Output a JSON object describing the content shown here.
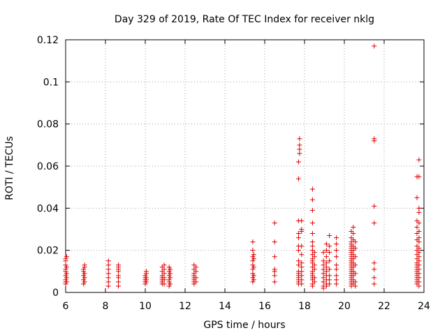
{
  "chart_data": {
    "type": "scatter",
    "title": "Day 329 of 2019, Rate Of TEC Index for receiver nklg",
    "xlabel": "GPS time / hours",
    "ylabel": "ROTI / TECUs",
    "xlim": [
      6,
      24
    ],
    "ylim": [
      0,
      0.12
    ],
    "xticks": [
      "6",
      "8",
      "10",
      "12",
      "14",
      "16",
      "18",
      "20",
      "22",
      "24"
    ],
    "yticks": [
      "0",
      "0.02",
      "0.04",
      "0.06",
      "0.08",
      "0.1",
      "0.12"
    ],
    "grid": true,
    "color": "#e00000",
    "marker": "+",
    "series": [
      {
        "name": "ROTI",
        "points": [
          [
            6.0,
            0.004
          ],
          [
            6.0,
            0.005
          ],
          [
            6.0,
            0.006
          ],
          [
            6.0,
            0.008
          ],
          [
            6.0,
            0.01
          ],
          [
            6.0,
            0.011
          ],
          [
            6.0,
            0.013
          ],
          [
            6.0,
            0.015
          ],
          [
            6.0,
            0.016
          ],
          [
            6.05,
            0.005
          ],
          [
            6.05,
            0.007
          ],
          [
            6.05,
            0.009
          ],
          [
            6.05,
            0.012
          ],
          [
            6.05,
            0.017
          ],
          [
            6.9,
            0.004
          ],
          [
            6.9,
            0.006
          ],
          [
            6.9,
            0.008
          ],
          [
            6.9,
            0.01
          ],
          [
            6.9,
            0.011
          ],
          [
            6.95,
            0.005
          ],
          [
            6.95,
            0.007
          ],
          [
            6.95,
            0.009
          ],
          [
            6.95,
            0.012
          ],
          [
            6.95,
            0.013
          ],
          [
            8.15,
            0.003
          ],
          [
            8.15,
            0.005
          ],
          [
            8.15,
            0.007
          ],
          [
            8.15,
            0.009
          ],
          [
            8.15,
            0.011
          ],
          [
            8.15,
            0.013
          ],
          [
            8.15,
            0.015
          ],
          [
            8.65,
            0.003
          ],
          [
            8.65,
            0.005
          ],
          [
            8.65,
            0.007
          ],
          [
            8.65,
            0.008
          ],
          [
            8.65,
            0.01
          ],
          [
            8.65,
            0.011
          ],
          [
            8.65,
            0.012
          ],
          [
            8.65,
            0.013
          ],
          [
            10.0,
            0.004
          ],
          [
            10.0,
            0.005
          ],
          [
            10.0,
            0.006
          ],
          [
            10.0,
            0.007
          ],
          [
            10.0,
            0.008
          ],
          [
            10.05,
            0.005
          ],
          [
            10.05,
            0.006
          ],
          [
            10.05,
            0.007
          ],
          [
            10.05,
            0.009
          ],
          [
            10.05,
            0.01
          ],
          [
            10.85,
            0.004
          ],
          [
            10.85,
            0.005
          ],
          [
            10.85,
            0.006
          ],
          [
            10.85,
            0.007
          ],
          [
            10.85,
            0.008
          ],
          [
            10.85,
            0.01
          ],
          [
            10.85,
            0.012
          ],
          [
            10.95,
            0.004
          ],
          [
            10.95,
            0.006
          ],
          [
            10.95,
            0.007
          ],
          [
            10.95,
            0.009
          ],
          [
            10.95,
            0.011
          ],
          [
            10.95,
            0.013
          ],
          [
            11.2,
            0.003
          ],
          [
            11.2,
            0.005
          ],
          [
            11.2,
            0.006
          ],
          [
            11.2,
            0.008
          ],
          [
            11.2,
            0.01
          ],
          [
            11.2,
            0.012
          ],
          [
            11.25,
            0.004
          ],
          [
            11.25,
            0.007
          ],
          [
            11.25,
            0.009
          ],
          [
            11.25,
            0.011
          ],
          [
            12.45,
            0.004
          ],
          [
            12.45,
            0.005
          ],
          [
            12.45,
            0.006
          ],
          [
            12.45,
            0.007
          ],
          [
            12.45,
            0.008
          ],
          [
            12.45,
            0.009
          ],
          [
            12.45,
            0.011
          ],
          [
            12.45,
            0.013
          ],
          [
            12.55,
            0.005
          ],
          [
            12.55,
            0.007
          ],
          [
            12.55,
            0.01
          ],
          [
            12.55,
            0.012
          ],
          [
            15.4,
            0.005
          ],
          [
            15.4,
            0.007
          ],
          [
            15.4,
            0.009
          ],
          [
            15.4,
            0.011
          ],
          [
            15.4,
            0.013
          ],
          [
            15.4,
            0.015
          ],
          [
            15.4,
            0.017
          ],
          [
            15.4,
            0.02
          ],
          [
            15.4,
            0.024
          ],
          [
            15.45,
            0.006
          ],
          [
            15.45,
            0.008
          ],
          [
            15.45,
            0.012
          ],
          [
            15.45,
            0.016
          ],
          [
            15.45,
            0.018
          ],
          [
            16.5,
            0.005
          ],
          [
            16.5,
            0.008
          ],
          [
            16.5,
            0.01
          ],
          [
            16.5,
            0.011
          ],
          [
            16.5,
            0.017
          ],
          [
            16.5,
            0.024
          ],
          [
            16.5,
            0.033
          ],
          [
            17.7,
            0.004
          ],
          [
            17.7,
            0.005
          ],
          [
            17.7,
            0.006
          ],
          [
            17.7,
            0.007
          ],
          [
            17.7,
            0.008
          ],
          [
            17.7,
            0.009
          ],
          [
            17.7,
            0.01
          ],
          [
            17.7,
            0.013
          ],
          [
            17.7,
            0.015
          ],
          [
            17.7,
            0.02
          ],
          [
            17.7,
            0.022
          ],
          [
            17.7,
            0.026
          ],
          [
            17.7,
            0.028
          ],
          [
            17.7,
            0.034
          ],
          [
            17.7,
            0.054
          ],
          [
            17.7,
            0.062
          ],
          [
            17.75,
            0.066
          ],
          [
            17.75,
            0.068
          ],
          [
            17.75,
            0.07
          ],
          [
            17.75,
            0.073
          ],
          [
            17.85,
            0.004
          ],
          [
            17.85,
            0.006
          ],
          [
            17.85,
            0.008
          ],
          [
            17.85,
            0.01
          ],
          [
            17.85,
            0.012
          ],
          [
            17.85,
            0.014
          ],
          [
            17.85,
            0.018
          ],
          [
            17.85,
            0.022
          ],
          [
            17.85,
            0.029
          ],
          [
            17.85,
            0.03
          ],
          [
            17.85,
            0.034
          ],
          [
            18.4,
            0.003
          ],
          [
            18.4,
            0.004
          ],
          [
            18.4,
            0.006
          ],
          [
            18.4,
            0.007
          ],
          [
            18.4,
            0.008
          ],
          [
            18.4,
            0.009
          ],
          [
            18.4,
            0.01
          ],
          [
            18.4,
            0.012
          ],
          [
            18.4,
            0.014
          ],
          [
            18.4,
            0.015
          ],
          [
            18.4,
            0.016
          ],
          [
            18.4,
            0.018
          ],
          [
            18.4,
            0.02
          ],
          [
            18.4,
            0.022
          ],
          [
            18.4,
            0.024
          ],
          [
            18.4,
            0.028
          ],
          [
            18.4,
            0.033
          ],
          [
            18.4,
            0.039
          ],
          [
            18.4,
            0.044
          ],
          [
            18.4,
            0.049
          ],
          [
            18.5,
            0.005
          ],
          [
            18.5,
            0.007
          ],
          [
            18.5,
            0.011
          ],
          [
            18.5,
            0.013
          ],
          [
            18.5,
            0.017
          ],
          [
            18.5,
            0.019
          ],
          [
            18.95,
            0.002
          ],
          [
            18.95,
            0.003
          ],
          [
            18.95,
            0.005
          ],
          [
            18.95,
            0.007
          ],
          [
            18.95,
            0.009
          ],
          [
            18.95,
            0.011
          ],
          [
            18.95,
            0.013
          ],
          [
            18.95,
            0.015
          ],
          [
            18.95,
            0.019
          ],
          [
            19.1,
            0.003
          ],
          [
            19.1,
            0.004
          ],
          [
            19.1,
            0.006
          ],
          [
            19.1,
            0.008
          ],
          [
            19.1,
            0.01
          ],
          [
            19.1,
            0.012
          ],
          [
            19.1,
            0.014
          ],
          [
            19.1,
            0.017
          ],
          [
            19.1,
            0.02
          ],
          [
            19.1,
            0.023
          ],
          [
            19.25,
            0.004
          ],
          [
            19.25,
            0.006
          ],
          [
            19.25,
            0.008
          ],
          [
            19.25,
            0.011
          ],
          [
            19.25,
            0.015
          ],
          [
            19.25,
            0.019
          ],
          [
            19.25,
            0.022
          ],
          [
            19.25,
            0.027
          ],
          [
            19.6,
            0.004
          ],
          [
            19.6,
            0.006
          ],
          [
            19.6,
            0.008
          ],
          [
            19.6,
            0.011
          ],
          [
            19.6,
            0.013
          ],
          [
            19.6,
            0.017
          ],
          [
            19.6,
            0.02
          ],
          [
            19.6,
            0.023
          ],
          [
            19.6,
            0.026
          ],
          [
            20.35,
            0.003
          ],
          [
            20.35,
            0.004
          ],
          [
            20.35,
            0.005
          ],
          [
            20.35,
            0.006
          ],
          [
            20.35,
            0.007
          ],
          [
            20.35,
            0.008
          ],
          [
            20.35,
            0.009
          ],
          [
            20.35,
            0.01
          ],
          [
            20.35,
            0.011
          ],
          [
            20.35,
            0.012
          ],
          [
            20.35,
            0.013
          ],
          [
            20.35,
            0.014
          ],
          [
            20.35,
            0.015
          ],
          [
            20.35,
            0.016
          ],
          [
            20.35,
            0.017
          ],
          [
            20.35,
            0.018
          ],
          [
            20.35,
            0.019
          ],
          [
            20.35,
            0.02
          ],
          [
            20.35,
            0.021
          ],
          [
            20.35,
            0.022
          ],
          [
            20.35,
            0.023
          ],
          [
            20.35,
            0.024
          ],
          [
            20.35,
            0.026
          ],
          [
            20.35,
            0.029
          ],
          [
            20.45,
            0.004
          ],
          [
            20.45,
            0.006
          ],
          [
            20.45,
            0.008
          ],
          [
            20.45,
            0.01
          ],
          [
            20.45,
            0.012
          ],
          [
            20.45,
            0.014
          ],
          [
            20.45,
            0.016
          ],
          [
            20.45,
            0.018
          ],
          [
            20.45,
            0.02
          ],
          [
            20.45,
            0.022
          ],
          [
            20.45,
            0.025
          ],
          [
            20.45,
            0.028
          ],
          [
            20.45,
            0.031
          ],
          [
            20.55,
            0.003
          ],
          [
            20.55,
            0.005
          ],
          [
            20.55,
            0.009
          ],
          [
            20.55,
            0.013
          ],
          [
            20.55,
            0.017
          ],
          [
            20.55,
            0.021
          ],
          [
            20.55,
            0.024
          ],
          [
            21.5,
            0.004
          ],
          [
            21.5,
            0.007
          ],
          [
            21.5,
            0.011
          ],
          [
            21.5,
            0.014
          ],
          [
            21.5,
            0.033
          ],
          [
            21.5,
            0.041
          ],
          [
            21.5,
            0.072
          ],
          [
            21.5,
            0.073
          ],
          [
            21.5,
            0.117
          ],
          [
            23.65,
            0.004
          ],
          [
            23.65,
            0.005
          ],
          [
            23.65,
            0.006
          ],
          [
            23.65,
            0.007
          ],
          [
            23.65,
            0.008
          ],
          [
            23.65,
            0.009
          ],
          [
            23.65,
            0.01
          ],
          [
            23.65,
            0.011
          ],
          [
            23.65,
            0.012
          ],
          [
            23.65,
            0.013
          ],
          [
            23.65,
            0.014
          ],
          [
            23.65,
            0.016
          ],
          [
            23.65,
            0.018
          ],
          [
            23.65,
            0.02
          ],
          [
            23.65,
            0.022
          ],
          [
            23.65,
            0.025
          ],
          [
            23.65,
            0.028
          ],
          [
            23.65,
            0.031
          ],
          [
            23.65,
            0.034
          ],
          [
            23.65,
            0.045
          ],
          [
            23.65,
            0.055
          ],
          [
            23.75,
            0.003
          ],
          [
            23.75,
            0.005
          ],
          [
            23.75,
            0.007
          ],
          [
            23.75,
            0.009
          ],
          [
            23.75,
            0.011
          ],
          [
            23.75,
            0.013
          ],
          [
            23.75,
            0.015
          ],
          [
            23.75,
            0.017
          ],
          [
            23.75,
            0.019
          ],
          [
            23.75,
            0.021
          ],
          [
            23.75,
            0.024
          ],
          [
            23.75,
            0.026
          ],
          [
            23.75,
            0.029
          ],
          [
            23.75,
            0.033
          ],
          [
            23.75,
            0.038
          ],
          [
            23.75,
            0.04
          ],
          [
            23.75,
            0.055
          ],
          [
            23.75,
            0.063
          ]
        ]
      }
    ]
  }
}
